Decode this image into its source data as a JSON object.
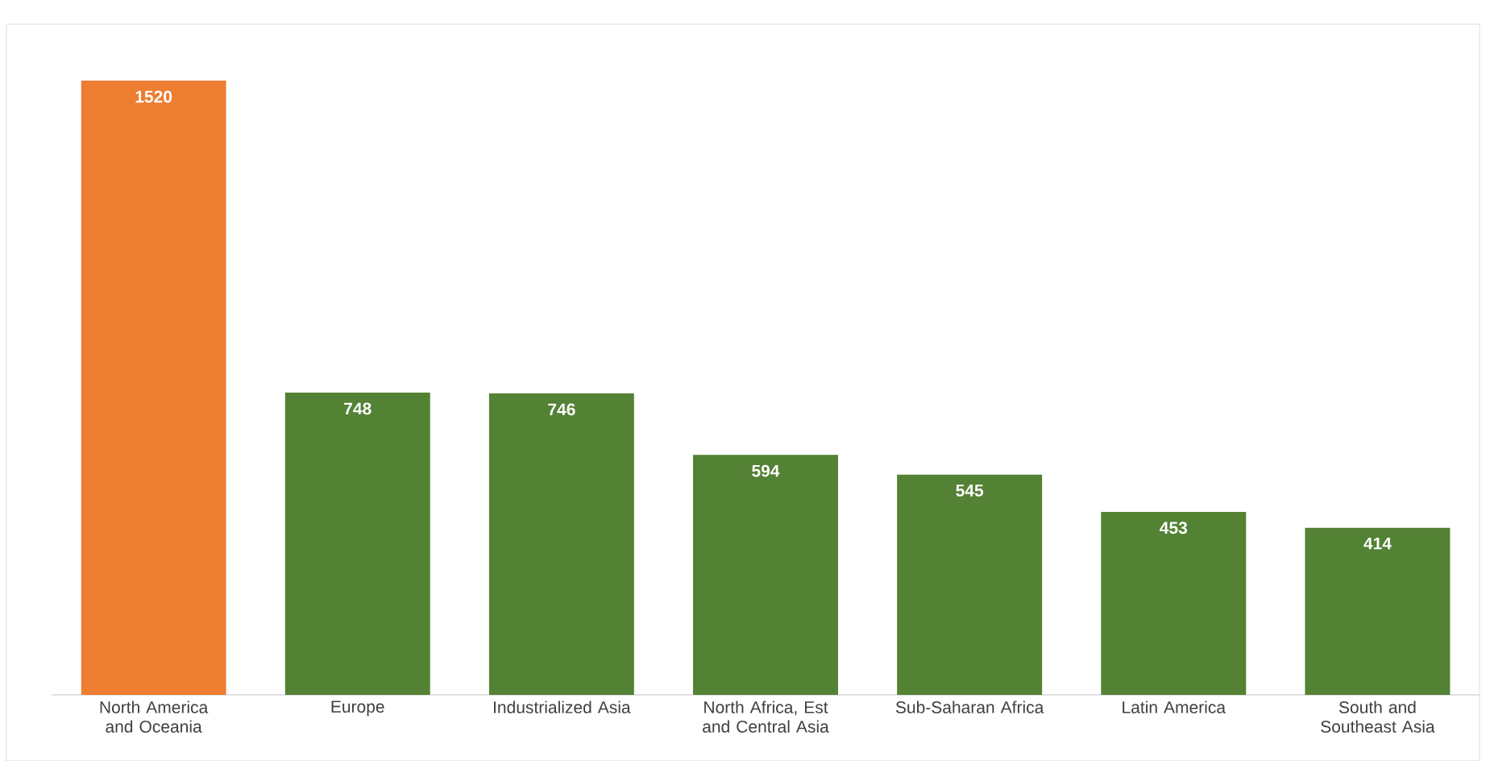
{
  "chart_data": {
    "type": "bar",
    "categories": [
      "North America and Oceania",
      "Europe",
      "Industrialized Asia",
      "North Africa, Est and Central Asia",
      "Sub-Saharan Africa",
      "Latin America",
      "South and Southeast Asia"
    ],
    "values": [
      1520,
      748,
      746,
      594,
      545,
      453,
      414
    ],
    "colors": [
      "#ed7d31",
      "#548235",
      "#548235",
      "#548235",
      "#548235",
      "#548235",
      "#548235"
    ],
    "data_labels": true
  }
}
